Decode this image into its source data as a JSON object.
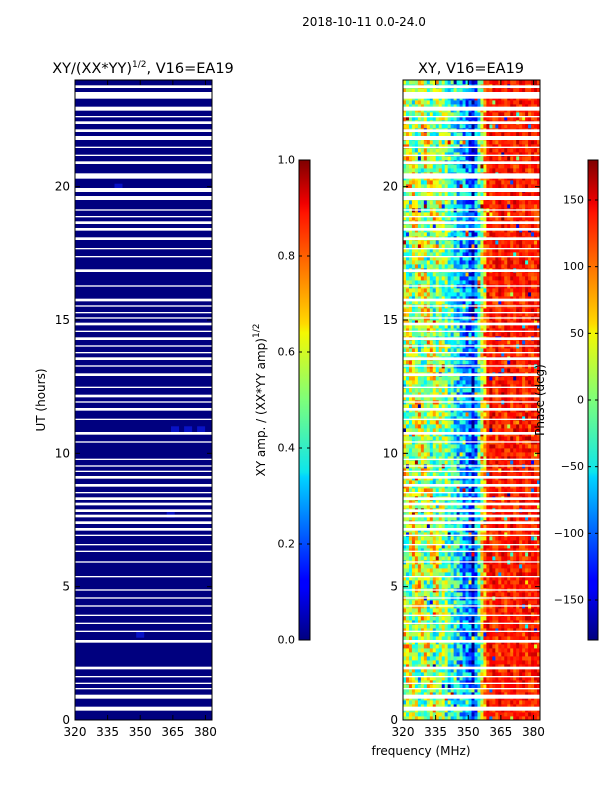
{
  "figure_title": "2018-10-11 0.0-24.0",
  "chart_data": [
    {
      "id": "amp",
      "type": "heatmap",
      "title_main": "XY/(XX*YY)",
      "title_sup": "1/2",
      "title_tail": ", V16=EA19",
      "xlabel": "",
      "ylabel": "UT (hours)",
      "xlim": [
        320,
        383
      ],
      "ylim": [
        0,
        24
      ],
      "xticks": [
        320,
        335,
        350,
        365,
        380
      ],
      "yticks": [
        0,
        5,
        10,
        15,
        20
      ],
      "colormap": "jet",
      "background_color": "#00007f",
      "colorbar": {
        "label_main": "XY amp. / (XX*YY amp)",
        "label_sup": "1/2",
        "range": [
          0.0,
          1.0
        ],
        "ticks": [
          "0.0",
          "0.2",
          "0.4",
          "0.6",
          "0.8",
          "1.0"
        ],
        "tick_values": [
          0.0,
          0.2,
          0.4,
          0.6,
          0.8,
          1.0
        ]
      }
    },
    {
      "id": "phase",
      "type": "heatmap",
      "title_main": "XY, V16=EA19",
      "xlabel": "frequency (MHz)",
      "ylabel": "",
      "xlim": [
        320,
        383
      ],
      "ylim": [
        0,
        24
      ],
      "xticks": [
        320,
        335,
        350,
        365,
        380
      ],
      "yticks": [
        0,
        5,
        10,
        15,
        20
      ],
      "colormap": "jet",
      "colorbar": {
        "label_main": "Phase (deg)",
        "range": [
          -180,
          180
        ],
        "ticks": [
          "−150",
          "−100",
          "−50",
          "0",
          "50",
          "100",
          "150"
        ],
        "tick_values": [
          -150,
          -100,
          -50,
          0,
          50,
          100,
          150
        ]
      }
    }
  ],
  "flagged_hours": [
    [
      0.35,
      0.5
    ],
    [
      0.8,
      0.95
    ],
    [
      1.15,
      1.2
    ],
    [
      1.35,
      1.4
    ],
    [
      1.6,
      1.65
    ],
    [
      1.9,
      2.0
    ],
    [
      2.9,
      3.0
    ],
    [
      3.3,
      3.35
    ],
    [
      3.6,
      3.65
    ],
    [
      3.9,
      3.95
    ],
    [
      4.25,
      4.3
    ],
    [
      4.55,
      4.6
    ],
    [
      4.85,
      4.9
    ],
    [
      5.35,
      5.4
    ],
    [
      5.9,
      5.95
    ],
    [
      6.3,
      6.35
    ],
    [
      6.55,
      6.6
    ],
    [
      6.9,
      6.95
    ],
    [
      7.1,
      7.2
    ],
    [
      7.35,
      7.45
    ],
    [
      7.6,
      7.7
    ],
    [
      7.8,
      7.9
    ],
    [
      8.05,
      8.15
    ],
    [
      8.25,
      8.35
    ],
    [
      8.5,
      8.55
    ],
    [
      8.75,
      8.85
    ],
    [
      9.05,
      9.15
    ],
    [
      9.3,
      9.35
    ],
    [
      9.5,
      9.55
    ],
    [
      9.75,
      9.8
    ],
    [
      10.4,
      10.45
    ],
    [
      10.7,
      10.8
    ],
    [
      11.25,
      11.3
    ],
    [
      11.6,
      11.7
    ],
    [
      11.9,
      11.95
    ],
    [
      12.1,
      12.2
    ],
    [
      12.45,
      12.5
    ],
    [
      12.9,
      13.0
    ],
    [
      13.25,
      13.3
    ],
    [
      13.5,
      13.6
    ],
    [
      13.75,
      13.8
    ],
    [
      14.0,
      14.05
    ],
    [
      14.25,
      14.35
    ],
    [
      14.55,
      14.6
    ],
    [
      14.8,
      14.9
    ],
    [
      15.05,
      15.1
    ],
    [
      15.25,
      15.3
    ],
    [
      15.5,
      15.55
    ],
    [
      15.7,
      15.8
    ],
    [
      16.25,
      16.3
    ],
    [
      16.8,
      16.9
    ],
    [
      17.35,
      17.4
    ],
    [
      17.65,
      17.7
    ],
    [
      18.0,
      18.1
    ],
    [
      18.35,
      18.45
    ],
    [
      18.6,
      18.7
    ],
    [
      18.85,
      18.9
    ],
    [
      19.1,
      19.15
    ],
    [
      19.5,
      19.65
    ],
    [
      19.8,
      19.95
    ],
    [
      20.3,
      20.5
    ],
    [
      20.85,
      20.95
    ],
    [
      21.15,
      21.2
    ],
    [
      21.45,
      21.5
    ],
    [
      21.75,
      21.9
    ],
    [
      22.05,
      22.15
    ],
    [
      22.35,
      22.45
    ],
    [
      22.6,
      22.65
    ],
    [
      22.85,
      23.0
    ],
    [
      23.3,
      23.55
    ],
    [
      23.7,
      23.8
    ]
  ]
}
